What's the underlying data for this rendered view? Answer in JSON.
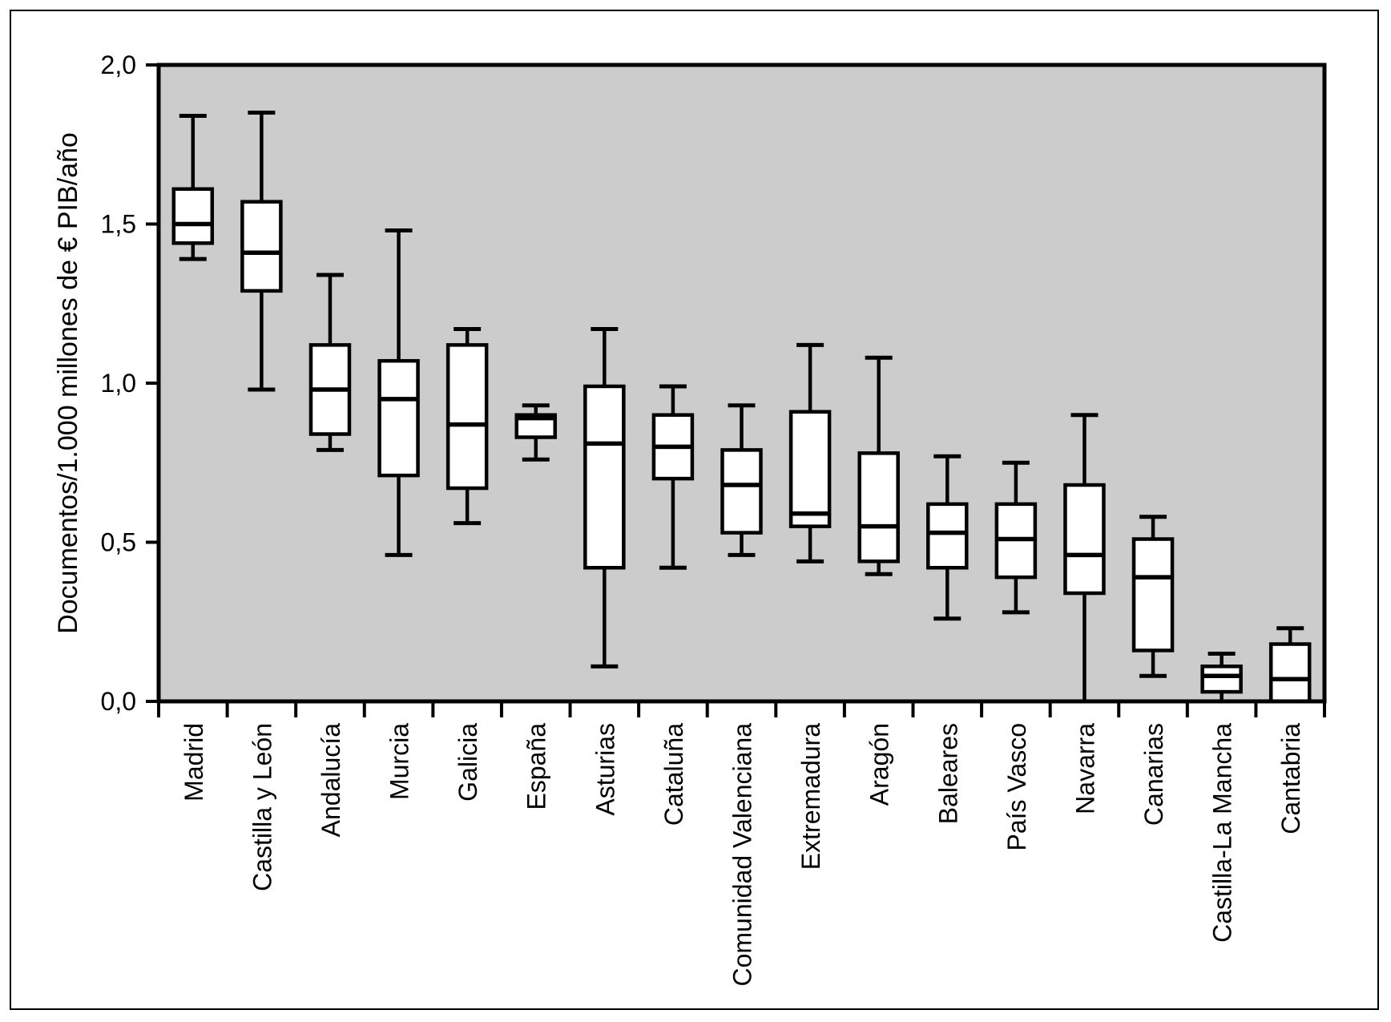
{
  "figure": {
    "background": "#ffffff",
    "plot_background": "#cccccc",
    "frame_color": "#000000",
    "box_fill": "#ffffff",
    "box_stroke": "#000000"
  },
  "chart_data": {
    "type": "boxplot",
    "title": "",
    "xlabel": "",
    "ylabel": "Documentos/1.000 millones de € PIB/año",
    "ylim": [
      0.0,
      2.0
    ],
    "ytick_values": [
      0.0,
      0.5,
      1.0,
      1.5,
      2.0
    ],
    "ytick_labels": [
      "0,0",
      "0,5",
      "1,0",
      "1,5",
      "2,0"
    ],
    "grid": false,
    "legend": null,
    "categories": [
      "Madrid",
      "Castilla y León",
      "Andalucía",
      "Murcia",
      "Galicia",
      "España",
      "Asturias",
      "Cataluña",
      "Comunidad Valenciana",
      "Extremadura",
      "Aragón",
      "Baleares",
      "País Vasco",
      "Navarra",
      "Canarias",
      "Castilla-La Mancha",
      "Cantabria"
    ],
    "series": [
      {
        "label": "Madrid",
        "whisker_low": 1.39,
        "q1": 1.44,
        "median": 1.5,
        "q3": 1.61,
        "whisker_high": 1.84
      },
      {
        "label": "Castilla y León",
        "whisker_low": 0.98,
        "q1": 1.29,
        "median": 1.41,
        "q3": 1.57,
        "whisker_high": 1.85
      },
      {
        "label": "Andalucía",
        "whisker_low": 0.79,
        "q1": 0.84,
        "median": 0.98,
        "q3": 1.12,
        "whisker_high": 1.34
      },
      {
        "label": "Murcia",
        "whisker_low": 0.46,
        "q1": 0.71,
        "median": 0.95,
        "q3": 1.07,
        "whisker_high": 1.48
      },
      {
        "label": "Galicia",
        "whisker_low": 0.56,
        "q1": 0.67,
        "median": 0.87,
        "q3": 1.12,
        "whisker_high": 1.17
      },
      {
        "label": "España",
        "whisker_low": 0.76,
        "q1": 0.83,
        "median": 0.89,
        "q3": 0.9,
        "whisker_high": 0.93
      },
      {
        "label": "Asturias",
        "whisker_low": 0.11,
        "q1": 0.42,
        "median": 0.81,
        "q3": 0.99,
        "whisker_high": 1.17
      },
      {
        "label": "Cataluña",
        "whisker_low": 0.42,
        "q1": 0.7,
        "median": 0.8,
        "q3": 0.9,
        "whisker_high": 0.99
      },
      {
        "label": "Comunidad Valenciana",
        "whisker_low": 0.46,
        "q1": 0.53,
        "median": 0.68,
        "q3": 0.79,
        "whisker_high": 0.93
      },
      {
        "label": "Extremadura",
        "whisker_low": 0.44,
        "q1": 0.55,
        "median": 0.59,
        "q3": 0.91,
        "whisker_high": 1.12
      },
      {
        "label": "Aragón",
        "whisker_low": 0.4,
        "q1": 0.44,
        "median": 0.55,
        "q3": 0.78,
        "whisker_high": 1.08
      },
      {
        "label": "Baleares",
        "whisker_low": 0.26,
        "q1": 0.42,
        "median": 0.53,
        "q3": 0.62,
        "whisker_high": 0.77
      },
      {
        "label": "País Vasco",
        "whisker_low": 0.28,
        "q1": 0.39,
        "median": 0.51,
        "q3": 0.62,
        "whisker_high": 0.75
      },
      {
        "label": "Navarra",
        "whisker_low": 0.0,
        "q1": 0.34,
        "median": 0.46,
        "q3": 0.68,
        "whisker_high": 0.9
      },
      {
        "label": "Canarias",
        "whisker_low": 0.08,
        "q1": 0.16,
        "median": 0.39,
        "q3": 0.51,
        "whisker_high": 0.58
      },
      {
        "label": "Castilla-La Mancha",
        "whisker_low": 0.0,
        "q1": 0.03,
        "median": 0.08,
        "q3": 0.11,
        "whisker_high": 0.15
      },
      {
        "label": "Cantabria",
        "whisker_low": 0.0,
        "q1": 0.0,
        "median": 0.07,
        "q3": 0.18,
        "whisker_high": 0.23
      }
    ]
  }
}
